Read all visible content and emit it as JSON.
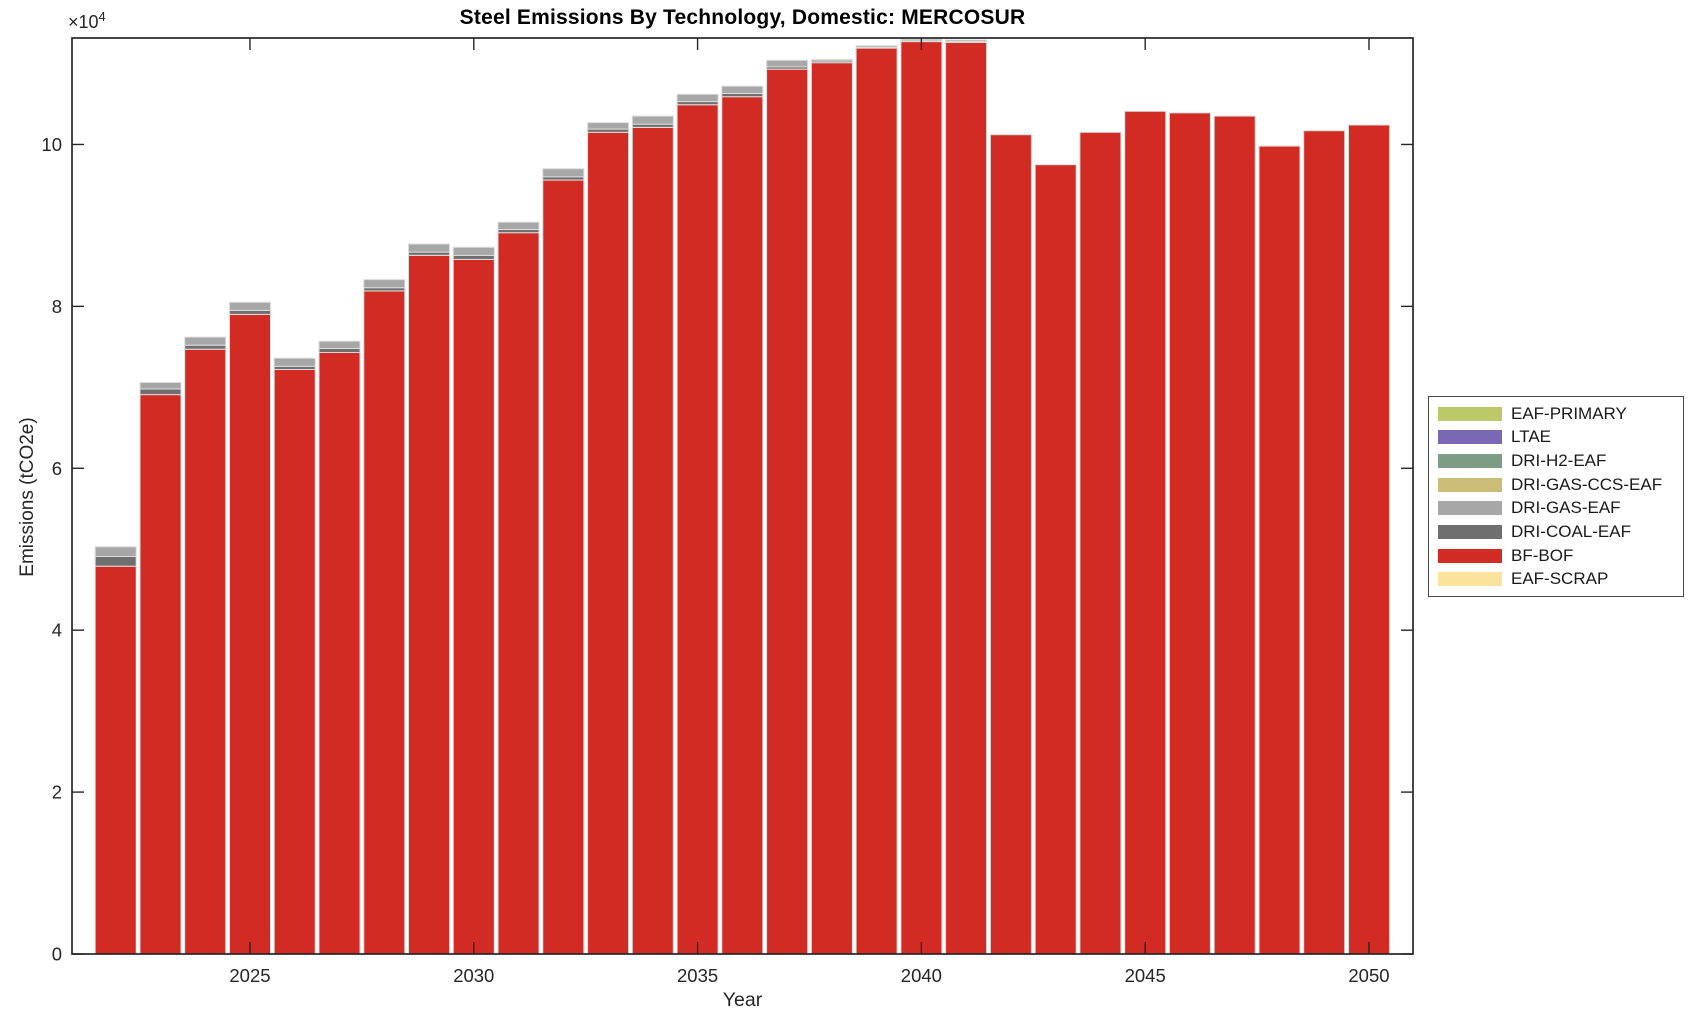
{
  "title": "Steel Emissions By Technology, Domestic: MERCOSUR",
  "axes": {
    "xlabel": "Year",
    "ylabel": "Emissions (tCO2e)",
    "y_multiplier_prefix": "×10",
    "y_multiplier_exponent": "4",
    "yticks": [
      {
        "value": 0,
        "label": "0"
      },
      {
        "value": 20000,
        "label": "2"
      },
      {
        "value": 40000,
        "label": "4"
      },
      {
        "value": 60000,
        "label": "6"
      },
      {
        "value": 80000,
        "label": "8"
      },
      {
        "value": 100000,
        "label": "10"
      }
    ],
    "xticks": [
      {
        "value": 2025,
        "label": "2025"
      },
      {
        "value": 2030,
        "label": "2030"
      },
      {
        "value": 2035,
        "label": "2035"
      },
      {
        "value": 2040,
        "label": "2040"
      },
      {
        "value": 2045,
        "label": "2045"
      },
      {
        "value": 2050,
        "label": "2050"
      }
    ]
  },
  "legend": {
    "position": "right",
    "items": [
      {
        "label": "EAF-PRIMARY",
        "color": "#bcc968"
      },
      {
        "label": "LTAE",
        "color": "#7a68b5"
      },
      {
        "label": "DRI-H2-EAF",
        "color": "#7d9c85"
      },
      {
        "label": "DRI-GAS-CCS-EAF",
        "color": "#c9bd78"
      },
      {
        "label": "DRI-GAS-EAF",
        "color": "#a7a7a7"
      },
      {
        "label": "DRI-COAL-EAF",
        "color": "#6f6f6f"
      },
      {
        "label": "BF-BOF",
        "color": "#d12b23"
      },
      {
        "label": "EAF-SCRAP",
        "color": "#fbe39d"
      }
    ]
  },
  "chart_data": {
    "type": "bar",
    "stacked": true,
    "title": "Steel Emissions By Technology, Domestic: MERCOSUR",
    "xlabel": "Year",
    "ylabel": "Emissions (tCO2e)",
    "ylim": [
      0,
      113150
    ],
    "grid": false,
    "legend_position": "right-outside",
    "x": [
      2022,
      2023,
      2024,
      2025,
      2026,
      2027,
      2028,
      2029,
      2030,
      2031,
      2032,
      2033,
      2034,
      2035,
      2036,
      2037,
      2038,
      2039,
      2040,
      2041,
      2042,
      2043,
      2044,
      2045,
      2046,
      2047,
      2048,
      2049,
      2050
    ],
    "stack_bottom_to_top": [
      "EAF-SCRAP",
      "BF-BOF",
      "DRI-COAL-EAF",
      "DRI-GAS-EAF",
      "DRI-GAS-CCS-EAF",
      "DRI-H2-EAF",
      "LTAE",
      "EAF-PRIMARY"
    ],
    "series": [
      {
        "name": "EAF-PRIMARY",
        "color": "#bcc968",
        "values": [
          0,
          0,
          0,
          0,
          0,
          0,
          0,
          0,
          0,
          0,
          0,
          0,
          0,
          0,
          0,
          0,
          0,
          0,
          0,
          0,
          0,
          0,
          0,
          0,
          0,
          0,
          0,
          0,
          0
        ]
      },
      {
        "name": "LTAE",
        "color": "#7a68b5",
        "values": [
          0,
          0,
          0,
          0,
          0,
          0,
          0,
          0,
          0,
          0,
          0,
          0,
          0,
          0,
          0,
          0,
          0,
          0,
          0,
          0,
          0,
          0,
          0,
          0,
          0,
          0,
          0,
          0,
          0
        ]
      },
      {
        "name": "DRI-H2-EAF",
        "color": "#7d9c85",
        "values": [
          0,
          0,
          0,
          0,
          0,
          0,
          0,
          0,
          0,
          0,
          0,
          0,
          0,
          0,
          0,
          0,
          0,
          0,
          0,
          0,
          0,
          0,
          0,
          0,
          0,
          0,
          0,
          0,
          0
        ]
      },
      {
        "name": "DRI-GAS-CCS-EAF",
        "color": "#c9bd78",
        "values": [
          0,
          0,
          0,
          0,
          0,
          0,
          0,
          0,
          0,
          0,
          0,
          0,
          0,
          0,
          0,
          0,
          0,
          0,
          0,
          0,
          0,
          0,
          0,
          0,
          0,
          0,
          0,
          0,
          0
        ]
      },
      {
        "name": "DRI-GAS-EAF",
        "color": "#a7a7a7",
        "values": [
          1200,
          800,
          1000,
          1000,
          1000,
          900,
          1000,
          1000,
          1000,
          900,
          1000,
          800,
          1000,
          900,
          900,
          800,
          200,
          200,
          200,
          200,
          0,
          0,
          0,
          0,
          0,
          0,
          0,
          0,
          0
        ]
      },
      {
        "name": "DRI-COAL-EAF",
        "color": "#6f6f6f",
        "values": [
          1200,
          700,
          500,
          500,
          400,
          500,
          400,
          400,
          500,
          400,
          400,
          400,
          400,
          400,
          400,
          300,
          200,
          100,
          100,
          100,
          0,
          0,
          0,
          0,
          0,
          0,
          0,
          0,
          0
        ]
      },
      {
        "name": "BF-BOF",
        "color": "#d12b23",
        "values": [
          47900,
          69100,
          74700,
          79000,
          72200,
          74300,
          81900,
          86300,
          85800,
          89100,
          95600,
          101500,
          102100,
          104900,
          105900,
          109300,
          110100,
          111900,
          112700,
          112600,
          101200,
          97500,
          101500,
          104100,
          103900,
          103500,
          99800,
          101700,
          102400
        ]
      },
      {
        "name": "EAF-SCRAP",
        "color": "#fbe39d",
        "values": [
          0,
          0,
          0,
          0,
          0,
          0,
          0,
          0,
          0,
          0,
          0,
          0,
          0,
          0,
          0,
          0,
          0,
          0,
          0,
          0,
          0,
          0,
          0,
          0,
          0,
          0,
          0,
          0,
          0
        ]
      }
    ]
  }
}
